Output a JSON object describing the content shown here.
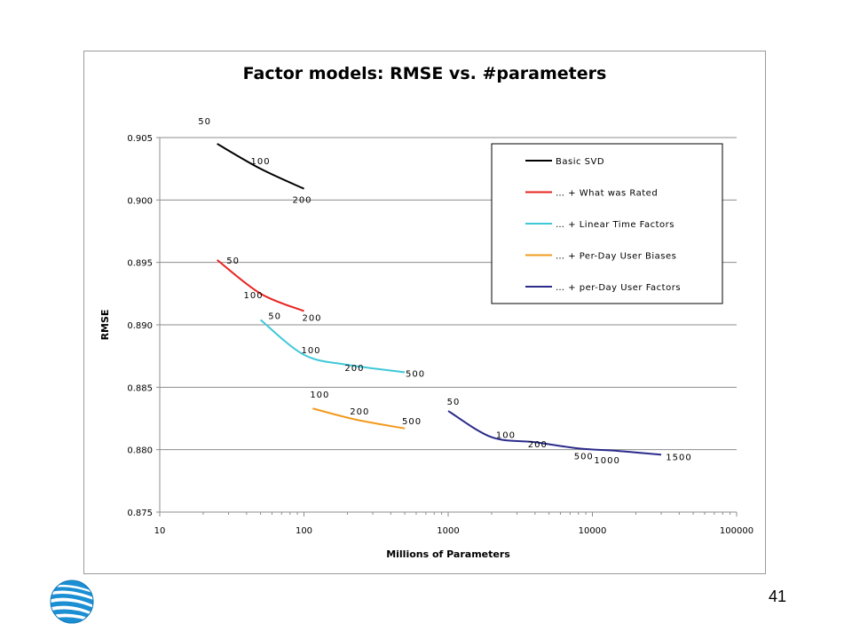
{
  "slide": {
    "page_number": "41"
  },
  "logo": {
    "icon": "att-globe-icon"
  },
  "chart_data": {
    "type": "line",
    "title": "Factor models:  RMSE vs. #parameters",
    "xlabel": "Millions of Parameters",
    "ylabel": "RMSE",
    "xscale": "log",
    "xlim": [
      10,
      100000
    ],
    "ylim": [
      0.875,
      0.905
    ],
    "x_ticks": [
      10,
      100,
      1000,
      10000,
      100000
    ],
    "x_tick_labels": [
      "10",
      "100",
      "1000",
      "10000",
      "100000"
    ],
    "y_ticks": [
      0.875,
      0.88,
      0.885,
      0.89,
      0.895,
      0.9,
      0.905
    ],
    "y_tick_labels": [
      "0.875",
      "0.880",
      "0.885",
      "0.890",
      "0.895",
      "0.900",
      "0.905"
    ],
    "grid": "horizontal",
    "legend": "top-right",
    "series": [
      {
        "name": "Basic SVD",
        "color": "#000000",
        "x": [
          25,
          50,
          100
        ],
        "y": [
          0.9045,
          0.9025,
          0.9009
        ],
        "point_labels": [
          "50",
          "100",
          "200"
        ]
      },
      {
        "name": "… + What was Rated",
        "color": "#e8231f",
        "x": [
          25,
          50,
          100
        ],
        "y": [
          0.8952,
          0.8925,
          0.8911
        ],
        "point_labels": [
          "50",
          "100",
          "200"
        ]
      },
      {
        "name": "… + Linear Time Factors",
        "color": "#3fc8d8",
        "x": [
          50,
          100,
          200,
          500
        ],
        "y": [
          0.8904,
          0.8876,
          0.8868,
          0.8862
        ],
        "point_labels": [
          "50",
          "100",
          "200",
          "500"
        ]
      },
      {
        "name": "… + Per-Day User Biases",
        "color": "#f29a1c",
        "x": [
          115,
          230,
          500
        ],
        "y": [
          0.8833,
          0.8824,
          0.8817
        ],
        "point_labels": [
          "100",
          "200",
          "500"
        ]
      },
      {
        "name": "… + per-Day User Factors",
        "color": "#2b2b8c",
        "x": [
          1000,
          2000,
          4000,
          8000,
          15000,
          30000
        ],
        "y": [
          0.8831,
          0.881,
          0.8806,
          0.8801,
          0.8799,
          0.8796
        ],
        "point_labels": [
          "50",
          "100",
          "200",
          "500",
          "1000",
          "1500"
        ]
      }
    ]
  }
}
